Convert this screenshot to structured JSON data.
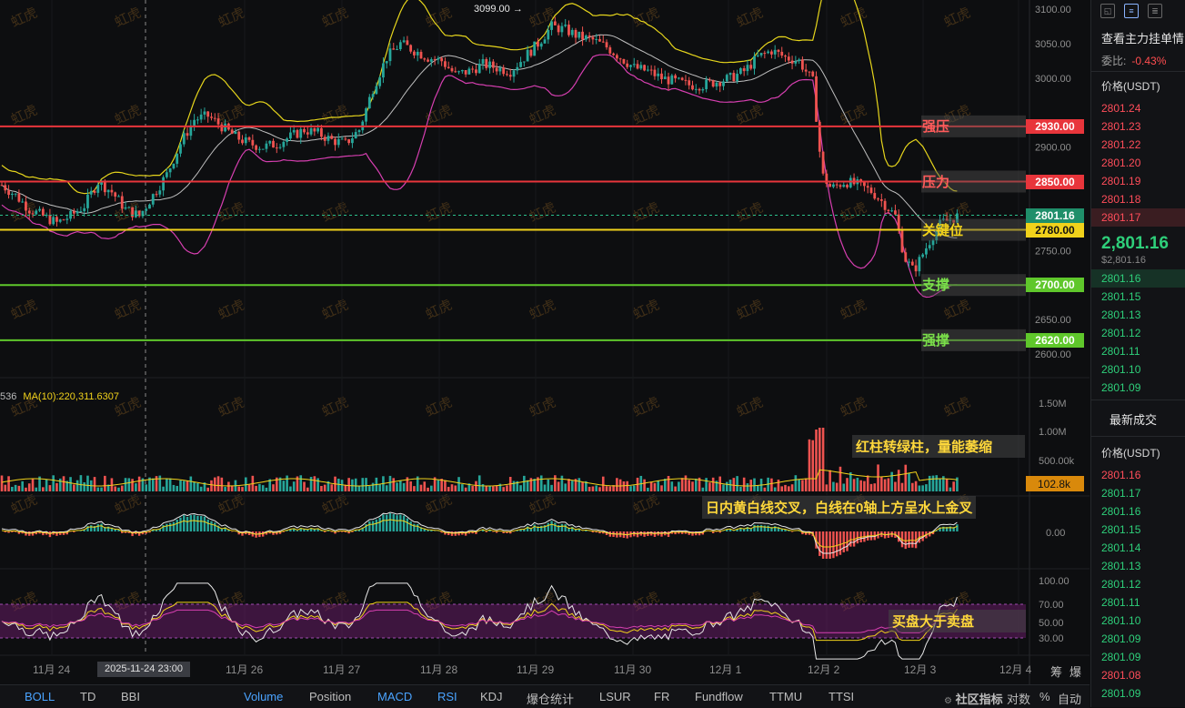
{
  "price_axis": {
    "ticks": [
      "3100.00",
      "3050.00",
      "3000.00",
      "2900.00",
      "2750.00",
      "2650.00",
      "2600.00"
    ]
  },
  "volume_axis": {
    "ticks": [
      "1.50M",
      "1.00M",
      "500.00k"
    ],
    "current": "102.8k"
  },
  "macd_axis": {
    "ticks": [
      "0.00"
    ]
  },
  "rsi_axis": {
    "ticks": [
      "100.00",
      "70.00",
      "50.00",
      "30.00"
    ]
  },
  "time_axis": {
    "labels": [
      "11月 24",
      "11月 26",
      "11月 27",
      "11月 28",
      "11月 29",
      "11月 30",
      "12月 1",
      "12月 2",
      "12月 3",
      "12月 4"
    ],
    "crosshair_label": "2025-11-24 23:00"
  },
  "peak_label": "3099.00 →",
  "ma_legend": {
    "prefix": "536",
    "ma10": "MA(10):220,311.6307"
  },
  "levels": [
    {
      "name": "强压",
      "value": "2930.00",
      "color": "#e8353b",
      "text_color": "#ff5b5b"
    },
    {
      "name": "压力",
      "value": "2850.00",
      "color": "#e8353b",
      "text_color": "#ff5b5b"
    },
    {
      "name": "关键位",
      "value": "2780.00",
      "color": "#f1d21b",
      "text_color": "#f1d21b"
    },
    {
      "name": "支撑",
      "value": "2700.00",
      "color": "#5fc72b",
      "text_color": "#7be04a"
    },
    {
      "name": "强撑",
      "value": "2620.00",
      "color": "#5fc72b",
      "text_color": "#7be04a"
    }
  ],
  "current_price_tag": "2801.16",
  "notes": {
    "volume": "红柱转绿柱，量能萎缩",
    "macd": "日内黄白线交叉，白线在0轴上方呈水上金叉",
    "rsi": "买盘大于卖盘"
  },
  "watermark": "虹虎",
  "bottom_tabs": {
    "left": [
      {
        "label": "BOLL",
        "on": true
      },
      {
        "label": "TD",
        "on": false
      },
      {
        "label": "BBI",
        "on": false
      }
    ],
    "right": [
      {
        "label": "Volume",
        "on": true
      },
      {
        "label": "Position",
        "on": false
      },
      {
        "label": "MACD",
        "on": true
      },
      {
        "label": "RSI",
        "on": true
      },
      {
        "label": "KDJ",
        "on": false
      },
      {
        "label": "爆仓统计",
        "on": false
      },
      {
        "label": "LSUR",
        "on": false
      },
      {
        "label": "FR",
        "on": false
      },
      {
        "label": "Fundflow",
        "on": false
      },
      {
        "label": "TTMU",
        "on": false
      },
      {
        "label": "TTSI",
        "on": false
      }
    ],
    "tools": {
      "community": "社区指标",
      "log": "对数",
      "pct": "%",
      "auto": "自动",
      "right_a": "筹",
      "right_b": "爆"
    }
  },
  "orderbook": {
    "title": "查看主力挂单情",
    "ratio_label": "委比:",
    "ratio_value": "-0.43%",
    "price_header": "价格(USDT)",
    "asks": [
      "2801.24",
      "2801.23",
      "2801.22",
      "2801.20",
      "2801.19",
      "2801.18",
      "2801.17"
    ],
    "last_price": "2,801.16",
    "last_price_usd": "$2,801.16",
    "bids": [
      "2801.16",
      "2801.15",
      "2801.13",
      "2801.12",
      "2801.11",
      "2801.10",
      "2801.09"
    ],
    "trades_title": "最新成交",
    "trades_header": "价格(USDT)",
    "trades": [
      {
        "p": "2801.16",
        "side": "red"
      },
      {
        "p": "2801.17",
        "side": "green"
      },
      {
        "p": "2801.16",
        "side": "green"
      },
      {
        "p": "2801.15",
        "side": "green"
      },
      {
        "p": "2801.14",
        "side": "green"
      },
      {
        "p": "2801.13",
        "side": "green"
      },
      {
        "p": "2801.12",
        "side": "green"
      },
      {
        "p": "2801.11",
        "side": "green"
      },
      {
        "p": "2801.10",
        "side": "green"
      },
      {
        "p": "2801.09",
        "side": "green"
      },
      {
        "p": "2801.09",
        "side": "green"
      },
      {
        "p": "2801.08",
        "side": "red"
      },
      {
        "p": "2801.09",
        "side": "green"
      },
      {
        "p": "2801.08",
        "side": "red"
      }
    ]
  },
  "chart_data": {
    "type": "candlestick",
    "ylim": [
      2590,
      3115
    ],
    "x_range": [
      "11月 23",
      "12月 4"
    ],
    "price_path": [
      [
        0,
        2845
      ],
      [
        6,
        2830
      ],
      [
        12,
        2810
      ],
      [
        18,
        2800
      ],
      [
        24,
        2790
      ],
      [
        30,
        2800
      ],
      [
        36,
        2815
      ],
      [
        42,
        2850
      ],
      [
        48,
        2835
      ],
      [
        54,
        2810
      ],
      [
        60,
        2800
      ],
      [
        66,
        2830
      ],
      [
        72,
        2860
      ],
      [
        78,
        2905
      ],
      [
        84,
        2940
      ],
      [
        90,
        2945
      ],
      [
        96,
        2930
      ],
      [
        102,
        2915
      ],
      [
        108,
        2905
      ],
      [
        114,
        2900
      ],
      [
        120,
        2905
      ],
      [
        126,
        2915
      ],
      [
        132,
        2925
      ],
      [
        138,
        2920
      ],
      [
        144,
        2910
      ],
      [
        150,
        2905
      ],
      [
        156,
        2925
      ],
      [
        162,
        2985
      ],
      [
        168,
        3030
      ],
      [
        174,
        3050
      ],
      [
        180,
        3040
      ],
      [
        186,
        3030
      ],
      [
        192,
        3025
      ],
      [
        198,
        3005
      ],
      [
        204,
        3010
      ],
      [
        210,
        3020
      ],
      [
        216,
        3015
      ],
      [
        222,
        3010
      ],
      [
        228,
        3030
      ],
      [
        234,
        3050
      ],
      [
        240,
        3075
      ],
      [
        246,
        3070
      ],
      [
        252,
        3060
      ],
      [
        258,
        3055
      ],
      [
        264,
        3045
      ],
      [
        270,
        3030
      ],
      [
        276,
        3015
      ],
      [
        282,
        3010
      ],
      [
        288,
        3000
      ],
      [
        294,
        2995
      ],
      [
        300,
        2990
      ],
      [
        306,
        2990
      ],
      [
        312,
        2995
      ],
      [
        318,
        3000
      ],
      [
        324,
        3010
      ],
      [
        330,
        3030
      ],
      [
        336,
        3040
      ],
      [
        342,
        3030
      ],
      [
        348,
        3025
      ],
      [
        354,
        2995
      ],
      [
        358,
        2860
      ],
      [
        362,
        2840
      ],
      [
        368,
        2850
      ],
      [
        374,
        2845
      ],
      [
        380,
        2835
      ],
      [
        386,
        2815
      ],
      [
        390,
        2800
      ],
      [
        394,
        2740
      ],
      [
        398,
        2720
      ],
      [
        402,
        2745
      ],
      [
        406,
        2770
      ],
      [
        410,
        2790
      ],
      [
        414,
        2795
      ],
      [
        418,
        2801
      ]
    ],
    "volume": {
      "spike_days": [
        "12月 1",
        "12月 2"
      ],
      "max": 1030000,
      "current": 102800
    },
    "rsi": {
      "overbought": 70,
      "oversold": 30
    }
  }
}
